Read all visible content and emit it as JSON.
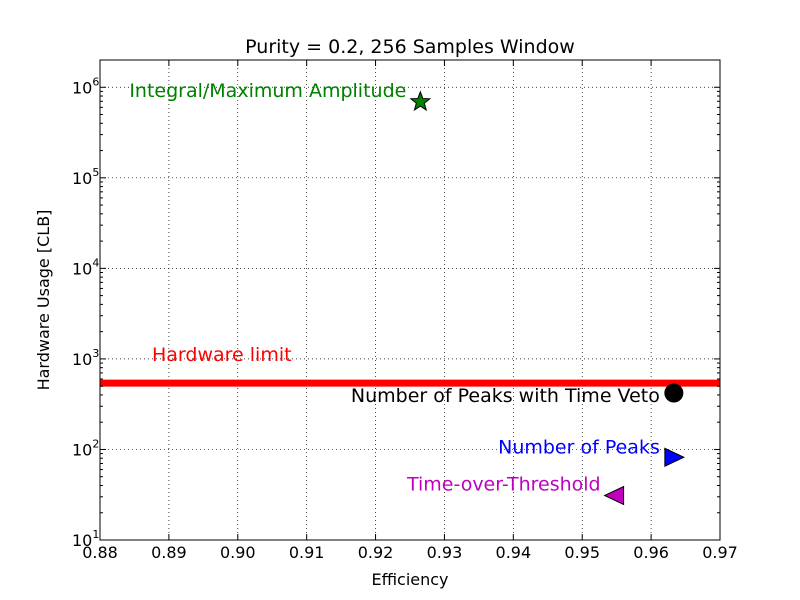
{
  "chart_data": {
    "type": "scatter",
    "title": "Purity = 0.2, 256 Samples Window",
    "xlabel": "Efficiency",
    "ylabel": "Hardware Usage [CLB]",
    "xlim": [
      0.88,
      0.97
    ],
    "ylim": [
      10,
      2000000
    ],
    "yscale": "log",
    "grid": true,
    "xticks": [
      "0.88",
      "0.89",
      "0.90",
      "0.91",
      "0.92",
      "0.93",
      "0.94",
      "0.95",
      "0.96",
      "0.97"
    ],
    "ytick_exponents": [
      "1",
      "2",
      "3",
      "4",
      "5",
      "6"
    ],
    "ytick_base": "10",
    "hline": {
      "y": 540,
      "label": "Hardware limit",
      "color": "#ff0000"
    },
    "points": [
      {
        "label": "Integral/Maximum Amplitude",
        "x": 0.9265,
        "y": 690000,
        "marker": "star",
        "color": "#008000"
      },
      {
        "label": "Number of Peaks with Time Veto",
        "x": 0.9633,
        "y": 420,
        "marker": "circle",
        "color": "#000000"
      },
      {
        "label": "Number of Peaks",
        "x": 0.9633,
        "y": 82,
        "marker": "triangle-right",
        "color": "#0000ff"
      },
      {
        "label": "Time-over-Threshold",
        "x": 0.9547,
        "y": 31,
        "marker": "triangle-left",
        "color": "#bf00bf"
      }
    ]
  }
}
